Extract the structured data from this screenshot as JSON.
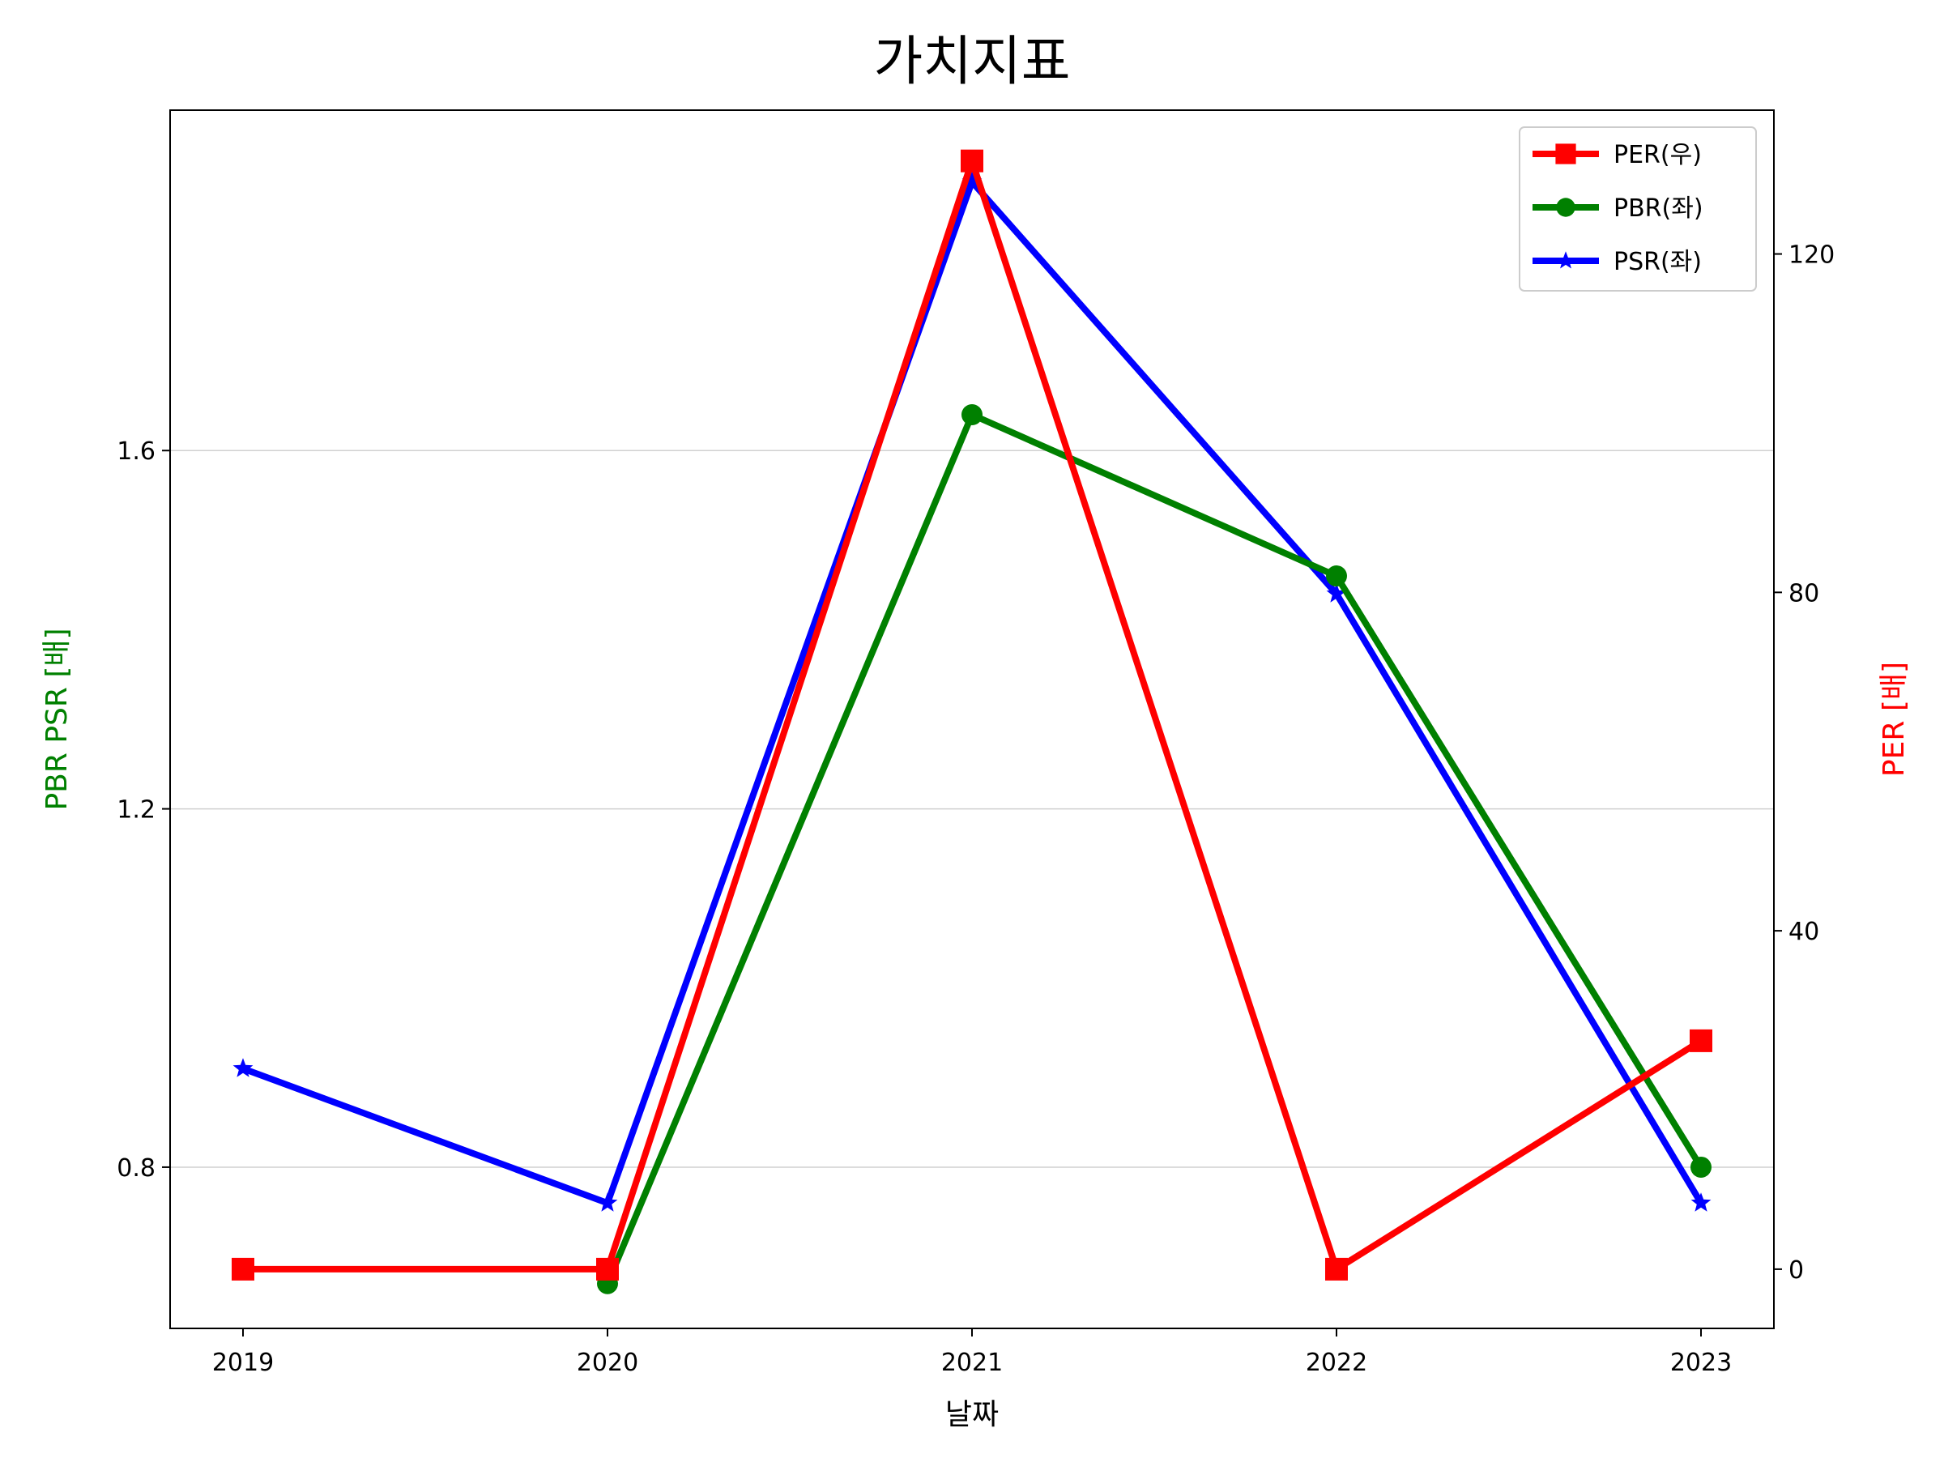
{
  "chart_data": {
    "type": "line",
    "title": "가치지표",
    "xlabel": "날짜",
    "ylabel_left": "PBR PSR [배]",
    "ylabel_right": "PER [배]",
    "categories": [
      "2019",
      "2020",
      "2021",
      "2022",
      "2023"
    ],
    "left_axis": {
      "ylim": [
        0.62,
        1.98
      ],
      "ticks": [
        0.8,
        1.2,
        1.6
      ],
      "tick_labels": [
        "0.8",
        "1.2",
        "1.6"
      ],
      "color": "#008000"
    },
    "right_axis": {
      "ylim": [
        -7,
        137
      ],
      "ticks": [
        0,
        40,
        80,
        120
      ],
      "tick_labels": [
        "0",
        "40",
        "80",
        "120"
      ],
      "color": "#ff0000"
    },
    "grid": "horizontal",
    "legend_position": "upper right",
    "series": [
      {
        "name": "PER(우)",
        "axis": "right",
        "color": "#ff0000",
        "marker": "square",
        "values": [
          0,
          0,
          131,
          0,
          27
        ]
      },
      {
        "name": "PBR(좌)",
        "axis": "left",
        "color": "#008000",
        "marker": "circle",
        "values": [
          null,
          0.67,
          1.64,
          1.46,
          0.8
        ]
      },
      {
        "name": "PSR(좌)",
        "axis": "left",
        "color": "#0000ff",
        "marker": "star",
        "values": [
          0.91,
          0.76,
          1.9,
          1.44,
          0.76
        ]
      }
    ]
  }
}
